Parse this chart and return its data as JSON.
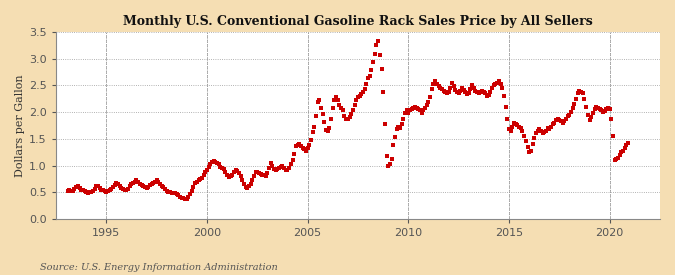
{
  "title": "Monthly U.S. Conventional Gasoline Rack Sales Price by All Sellers",
  "ylabel": "Dollars per Gallon",
  "source": "Source: U.S. Energy Information Administration",
  "figure_bg": "#f5deb3",
  "plot_bg": "#ffffff",
  "dot_color": "#cc0000",
  "xlim": [
    1992.5,
    2022.5
  ],
  "ylim": [
    0.0,
    3.5
  ],
  "yticks": [
    0.0,
    0.5,
    1.0,
    1.5,
    2.0,
    2.5,
    3.0,
    3.5
  ],
  "xticks": [
    1995,
    2000,
    2005,
    2010,
    2015,
    2020
  ],
  "data": [
    [
      1993.08,
      0.52
    ],
    [
      1993.17,
      0.54
    ],
    [
      1993.25,
      0.52
    ],
    [
      1993.33,
      0.53
    ],
    [
      1993.42,
      0.56
    ],
    [
      1993.5,
      0.6
    ],
    [
      1993.58,
      0.61
    ],
    [
      1993.67,
      0.58
    ],
    [
      1993.75,
      0.55
    ],
    [
      1993.83,
      0.54
    ],
    [
      1993.92,
      0.52
    ],
    [
      1994.0,
      0.5
    ],
    [
      1994.08,
      0.49
    ],
    [
      1994.17,
      0.5
    ],
    [
      1994.25,
      0.51
    ],
    [
      1994.33,
      0.53
    ],
    [
      1994.42,
      0.57
    ],
    [
      1994.5,
      0.62
    ],
    [
      1994.58,
      0.62
    ],
    [
      1994.67,
      0.58
    ],
    [
      1994.75,
      0.55
    ],
    [
      1994.83,
      0.54
    ],
    [
      1994.92,
      0.52
    ],
    [
      1995.0,
      0.51
    ],
    [
      1995.08,
      0.52
    ],
    [
      1995.17,
      0.55
    ],
    [
      1995.25,
      0.57
    ],
    [
      1995.33,
      0.6
    ],
    [
      1995.42,
      0.64
    ],
    [
      1995.5,
      0.67
    ],
    [
      1995.58,
      0.65
    ],
    [
      1995.67,
      0.62
    ],
    [
      1995.75,
      0.58
    ],
    [
      1995.83,
      0.57
    ],
    [
      1995.92,
      0.55
    ],
    [
      1996.0,
      0.54
    ],
    [
      1996.08,
      0.57
    ],
    [
      1996.17,
      0.61
    ],
    [
      1996.25,
      0.66
    ],
    [
      1996.33,
      0.68
    ],
    [
      1996.42,
      0.7
    ],
    [
      1996.5,
      0.72
    ],
    [
      1996.58,
      0.7
    ],
    [
      1996.67,
      0.66
    ],
    [
      1996.75,
      0.63
    ],
    [
      1996.83,
      0.62
    ],
    [
      1996.92,
      0.6
    ],
    [
      1997.0,
      0.58
    ],
    [
      1997.08,
      0.6
    ],
    [
      1997.17,
      0.63
    ],
    [
      1997.25,
      0.65
    ],
    [
      1997.33,
      0.68
    ],
    [
      1997.42,
      0.7
    ],
    [
      1997.5,
      0.72
    ],
    [
      1997.58,
      0.69
    ],
    [
      1997.67,
      0.65
    ],
    [
      1997.75,
      0.62
    ],
    [
      1997.83,
      0.6
    ],
    [
      1997.92,
      0.57
    ],
    [
      1998.0,
      0.53
    ],
    [
      1998.08,
      0.51
    ],
    [
      1998.17,
      0.5
    ],
    [
      1998.25,
      0.48
    ],
    [
      1998.33,
      0.48
    ],
    [
      1998.42,
      0.48
    ],
    [
      1998.5,
      0.47
    ],
    [
      1998.58,
      0.44
    ],
    [
      1998.67,
      0.42
    ],
    [
      1998.75,
      0.4
    ],
    [
      1998.83,
      0.39
    ],
    [
      1998.92,
      0.38
    ],
    [
      1999.0,
      0.38
    ],
    [
      1999.08,
      0.42
    ],
    [
      1999.17,
      0.46
    ],
    [
      1999.25,
      0.52
    ],
    [
      1999.33,
      0.6
    ],
    [
      1999.42,
      0.67
    ],
    [
      1999.5,
      0.7
    ],
    [
      1999.58,
      0.72
    ],
    [
      1999.67,
      0.74
    ],
    [
      1999.75,
      0.77
    ],
    [
      1999.83,
      0.82
    ],
    [
      1999.92,
      0.87
    ],
    [
      2000.0,
      0.92
    ],
    [
      2000.08,
      0.97
    ],
    [
      2000.17,
      1.02
    ],
    [
      2000.25,
      1.07
    ],
    [
      2000.33,
      1.08
    ],
    [
      2000.42,
      1.06
    ],
    [
      2000.5,
      1.04
    ],
    [
      2000.58,
      1.02
    ],
    [
      2000.67,
      0.98
    ],
    [
      2000.75,
      0.96
    ],
    [
      2000.83,
      0.93
    ],
    [
      2000.92,
      0.88
    ],
    [
      2001.0,
      0.83
    ],
    [
      2001.08,
      0.78
    ],
    [
      2001.17,
      0.8
    ],
    [
      2001.25,
      0.83
    ],
    [
      2001.33,
      0.88
    ],
    [
      2001.42,
      0.91
    ],
    [
      2001.5,
      0.9
    ],
    [
      2001.58,
      0.86
    ],
    [
      2001.67,
      0.8
    ],
    [
      2001.75,
      0.73
    ],
    [
      2001.83,
      0.66
    ],
    [
      2001.92,
      0.6
    ],
    [
      2002.0,
      0.58
    ],
    [
      2002.08,
      0.62
    ],
    [
      2002.17,
      0.66
    ],
    [
      2002.25,
      0.72
    ],
    [
      2002.33,
      0.8
    ],
    [
      2002.42,
      0.87
    ],
    [
      2002.5,
      0.88
    ],
    [
      2002.58,
      0.86
    ],
    [
      2002.67,
      0.85
    ],
    [
      2002.75,
      0.83
    ],
    [
      2002.83,
      0.82
    ],
    [
      2002.92,
      0.81
    ],
    [
      2003.0,
      0.86
    ],
    [
      2003.08,
      0.96
    ],
    [
      2003.17,
      1.04
    ],
    [
      2003.25,
      1.0
    ],
    [
      2003.33,
      0.93
    ],
    [
      2003.42,
      0.91
    ],
    [
      2003.5,
      0.93
    ],
    [
      2003.58,
      0.96
    ],
    [
      2003.67,
      0.98
    ],
    [
      2003.75,
      1.0
    ],
    [
      2003.83,
      0.95
    ],
    [
      2003.92,
      0.91
    ],
    [
      2004.0,
      0.91
    ],
    [
      2004.08,
      0.96
    ],
    [
      2004.17,
      1.03
    ],
    [
      2004.25,
      1.1
    ],
    [
      2004.33,
      1.22
    ],
    [
      2004.42,
      1.36
    ],
    [
      2004.5,
      1.38
    ],
    [
      2004.58,
      1.4
    ],
    [
      2004.67,
      1.36
    ],
    [
      2004.75,
      1.33
    ],
    [
      2004.83,
      1.31
    ],
    [
      2004.92,
      1.28
    ],
    [
      2005.0,
      1.33
    ],
    [
      2005.08,
      1.38
    ],
    [
      2005.17,
      1.48
    ],
    [
      2005.25,
      1.62
    ],
    [
      2005.33,
      1.72
    ],
    [
      2005.42,
      1.93
    ],
    [
      2005.5,
      2.18
    ],
    [
      2005.58,
      2.22
    ],
    [
      2005.67,
      2.07
    ],
    [
      2005.75,
      1.97
    ],
    [
      2005.83,
      1.82
    ],
    [
      2005.92,
      1.67
    ],
    [
      2006.0,
      1.65
    ],
    [
      2006.08,
      1.7
    ],
    [
      2006.17,
      1.88
    ],
    [
      2006.25,
      2.08
    ],
    [
      2006.33,
      2.23
    ],
    [
      2006.42,
      2.28
    ],
    [
      2006.5,
      2.23
    ],
    [
      2006.58,
      2.13
    ],
    [
      2006.67,
      2.08
    ],
    [
      2006.75,
      2.03
    ],
    [
      2006.83,
      1.93
    ],
    [
      2006.92,
      1.88
    ],
    [
      2007.0,
      1.88
    ],
    [
      2007.08,
      1.9
    ],
    [
      2007.17,
      1.96
    ],
    [
      2007.25,
      2.03
    ],
    [
      2007.33,
      2.13
    ],
    [
      2007.42,
      2.23
    ],
    [
      2007.5,
      2.28
    ],
    [
      2007.58,
      2.3
    ],
    [
      2007.67,
      2.33
    ],
    [
      2007.75,
      2.38
    ],
    [
      2007.83,
      2.43
    ],
    [
      2007.92,
      2.53
    ],
    [
      2008.0,
      2.63
    ],
    [
      2008.08,
      2.68
    ],
    [
      2008.17,
      2.78
    ],
    [
      2008.25,
      2.93
    ],
    [
      2008.33,
      3.08
    ],
    [
      2008.42,
      3.25
    ],
    [
      2008.5,
      3.33
    ],
    [
      2008.58,
      3.06
    ],
    [
      2008.67,
      2.8
    ],
    [
      2008.75,
      2.38
    ],
    [
      2008.83,
      1.77
    ],
    [
      2008.92,
      1.18
    ],
    [
      2009.0,
      1.0
    ],
    [
      2009.08,
      1.03
    ],
    [
      2009.17,
      1.13
    ],
    [
      2009.25,
      1.38
    ],
    [
      2009.33,
      1.53
    ],
    [
      2009.42,
      1.68
    ],
    [
      2009.5,
      1.73
    ],
    [
      2009.58,
      1.7
    ],
    [
      2009.67,
      1.78
    ],
    [
      2009.75,
      1.88
    ],
    [
      2009.83,
      1.98
    ],
    [
      2009.92,
      2.03
    ],
    [
      2010.0,
      1.98
    ],
    [
      2010.08,
      2.03
    ],
    [
      2010.17,
      2.06
    ],
    [
      2010.25,
      2.08
    ],
    [
      2010.33,
      2.1
    ],
    [
      2010.42,
      2.08
    ],
    [
      2010.5,
      2.06
    ],
    [
      2010.58,
      2.03
    ],
    [
      2010.67,
      1.98
    ],
    [
      2010.75,
      2.03
    ],
    [
      2010.83,
      2.08
    ],
    [
      2010.92,
      2.13
    ],
    [
      2011.0,
      2.18
    ],
    [
      2011.08,
      2.28
    ],
    [
      2011.17,
      2.43
    ],
    [
      2011.25,
      2.53
    ],
    [
      2011.33,
      2.58
    ],
    [
      2011.42,
      2.53
    ],
    [
      2011.5,
      2.48
    ],
    [
      2011.58,
      2.46
    ],
    [
      2011.67,
      2.43
    ],
    [
      2011.75,
      2.4
    ],
    [
      2011.83,
      2.38
    ],
    [
      2011.92,
      2.35
    ],
    [
      2012.0,
      2.38
    ],
    [
      2012.08,
      2.45
    ],
    [
      2012.17,
      2.55
    ],
    [
      2012.25,
      2.48
    ],
    [
      2012.33,
      2.42
    ],
    [
      2012.42,
      2.38
    ],
    [
      2012.5,
      2.35
    ],
    [
      2012.58,
      2.4
    ],
    [
      2012.67,
      2.45
    ],
    [
      2012.75,
      2.42
    ],
    [
      2012.83,
      2.38
    ],
    [
      2012.92,
      2.33
    ],
    [
      2013.0,
      2.35
    ],
    [
      2013.08,
      2.43
    ],
    [
      2013.17,
      2.5
    ],
    [
      2013.25,
      2.45
    ],
    [
      2013.33,
      2.4
    ],
    [
      2013.42,
      2.38
    ],
    [
      2013.5,
      2.35
    ],
    [
      2013.58,
      2.38
    ],
    [
      2013.67,
      2.4
    ],
    [
      2013.75,
      2.38
    ],
    [
      2013.83,
      2.35
    ],
    [
      2013.92,
      2.3
    ],
    [
      2014.0,
      2.32
    ],
    [
      2014.08,
      2.38
    ],
    [
      2014.17,
      2.45
    ],
    [
      2014.25,
      2.5
    ],
    [
      2014.33,
      2.53
    ],
    [
      2014.42,
      2.55
    ],
    [
      2014.5,
      2.58
    ],
    [
      2014.58,
      2.53
    ],
    [
      2014.67,
      2.45
    ],
    [
      2014.75,
      2.3
    ],
    [
      2014.83,
      2.1
    ],
    [
      2014.92,
      1.88
    ],
    [
      2015.0,
      1.68
    ],
    [
      2015.08,
      1.65
    ],
    [
      2015.17,
      1.72
    ],
    [
      2015.25,
      1.8
    ],
    [
      2015.33,
      1.78
    ],
    [
      2015.42,
      1.75
    ],
    [
      2015.5,
      1.72
    ],
    [
      2015.58,
      1.7
    ],
    [
      2015.67,
      1.65
    ],
    [
      2015.75,
      1.55
    ],
    [
      2015.83,
      1.45
    ],
    [
      2015.92,
      1.35
    ],
    [
      2016.0,
      1.25
    ],
    [
      2016.08,
      1.28
    ],
    [
      2016.17,
      1.4
    ],
    [
      2016.25,
      1.52
    ],
    [
      2016.33,
      1.6
    ],
    [
      2016.42,
      1.65
    ],
    [
      2016.5,
      1.68
    ],
    [
      2016.58,
      1.65
    ],
    [
      2016.67,
      1.6
    ],
    [
      2016.75,
      1.62
    ],
    [
      2016.83,
      1.65
    ],
    [
      2016.92,
      1.7
    ],
    [
      2017.0,
      1.68
    ],
    [
      2017.08,
      1.72
    ],
    [
      2017.17,
      1.78
    ],
    [
      2017.25,
      1.8
    ],
    [
      2017.33,
      1.85
    ],
    [
      2017.42,
      1.88
    ],
    [
      2017.5,
      1.85
    ],
    [
      2017.58,
      1.83
    ],
    [
      2017.67,
      1.8
    ],
    [
      2017.75,
      1.83
    ],
    [
      2017.83,
      1.88
    ],
    [
      2017.92,
      1.92
    ],
    [
      2018.0,
      1.95
    ],
    [
      2018.08,
      2.0
    ],
    [
      2018.17,
      2.08
    ],
    [
      2018.25,
      2.15
    ],
    [
      2018.33,
      2.25
    ],
    [
      2018.42,
      2.35
    ],
    [
      2018.5,
      2.4
    ],
    [
      2018.58,
      2.38
    ],
    [
      2018.67,
      2.35
    ],
    [
      2018.75,
      2.25
    ],
    [
      2018.83,
      2.1
    ],
    [
      2018.92,
      1.95
    ],
    [
      2019.0,
      1.85
    ],
    [
      2019.08,
      1.9
    ],
    [
      2019.17,
      1.98
    ],
    [
      2019.25,
      2.05
    ],
    [
      2019.33,
      2.1
    ],
    [
      2019.42,
      2.08
    ],
    [
      2019.5,
      2.05
    ],
    [
      2019.58,
      2.03
    ],
    [
      2019.67,
      2.0
    ],
    [
      2019.75,
      2.02
    ],
    [
      2019.83,
      2.05
    ],
    [
      2019.92,
      2.08
    ],
    [
      2020.0,
      2.05
    ],
    [
      2020.08,
      1.88
    ],
    [
      2020.17,
      1.55
    ],
    [
      2020.25,
      1.1
    ],
    [
      2020.33,
      1.12
    ],
    [
      2020.42,
      1.15
    ],
    [
      2020.5,
      1.2
    ],
    [
      2020.58,
      1.25
    ],
    [
      2020.67,
      1.28
    ],
    [
      2020.75,
      1.32
    ],
    [
      2020.83,
      1.38
    ],
    [
      2020.92,
      1.42
    ]
  ]
}
